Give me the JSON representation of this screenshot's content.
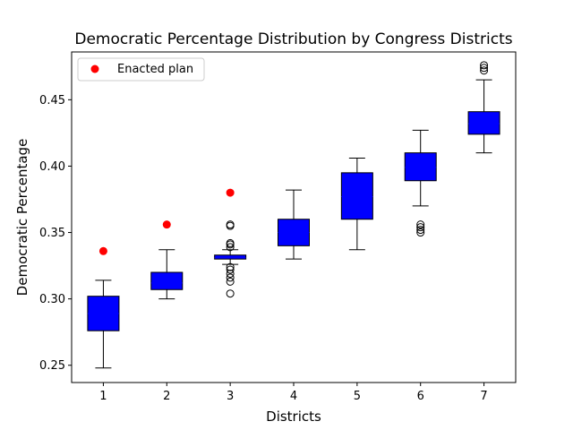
{
  "chart_data": {
    "type": "box",
    "title": "Democratic Percentage Distribution by Congress Districts",
    "xlabel": "Districts",
    "ylabel": "Democratic Percentage",
    "xlim": [
      0.5,
      7.5
    ],
    "ylim": [
      0.237,
      0.486
    ],
    "yticks": [
      0.25,
      0.3,
      0.35,
      0.4,
      0.45
    ],
    "ytick_labels": [
      "0.25",
      "0.30",
      "0.35",
      "0.40",
      "0.45"
    ],
    "categories": [
      "1",
      "2",
      "3",
      "4",
      "5",
      "6",
      "7"
    ],
    "box_color": "#0000ff",
    "marker_color": "#ff0000",
    "legend": {
      "label": "Enacted plan",
      "placement": "top-left"
    },
    "grid": false,
    "boxes": [
      {
        "district": 1,
        "whisker_low": 0.248,
        "q1": 0.276,
        "median": 0.289,
        "q3": 0.302,
        "whisker_high": 0.314,
        "outliers": []
      },
      {
        "district": 2,
        "whisker_low": 0.3,
        "q1": 0.307,
        "median": 0.312,
        "q3": 0.32,
        "whisker_high": 0.337,
        "outliers": []
      },
      {
        "district": 3,
        "whisker_low": 0.326,
        "q1": 0.33,
        "median": 0.331,
        "q3": 0.333,
        "whisker_high": 0.337,
        "outliers": [
          0.304,
          0.313,
          0.316,
          0.319,
          0.322,
          0.324,
          0.339,
          0.341,
          0.342,
          0.355,
          0.356
        ]
      },
      {
        "district": 4,
        "whisker_low": 0.33,
        "q1": 0.34,
        "median": 0.35,
        "q3": 0.36,
        "whisker_high": 0.382,
        "outliers": []
      },
      {
        "district": 5,
        "whisker_low": 0.337,
        "q1": 0.36,
        "median": 0.377,
        "q3": 0.395,
        "whisker_high": 0.406,
        "outliers": []
      },
      {
        "district": 6,
        "whisker_low": 0.37,
        "q1": 0.389,
        "median": 0.399,
        "q3": 0.41,
        "whisker_high": 0.427,
        "outliers": [
          0.35,
          0.352,
          0.354,
          0.356
        ]
      },
      {
        "district": 7,
        "whisker_low": 0.41,
        "q1": 0.424,
        "median": 0.432,
        "q3": 0.441,
        "whisker_high": 0.465,
        "outliers": [
          0.472,
          0.474,
          0.476
        ]
      }
    ],
    "enacted_plan": [
      {
        "district": 1,
        "value": 0.336
      },
      {
        "district": 2,
        "value": 0.356
      },
      {
        "district": 3,
        "value": 0.38
      }
    ]
  }
}
